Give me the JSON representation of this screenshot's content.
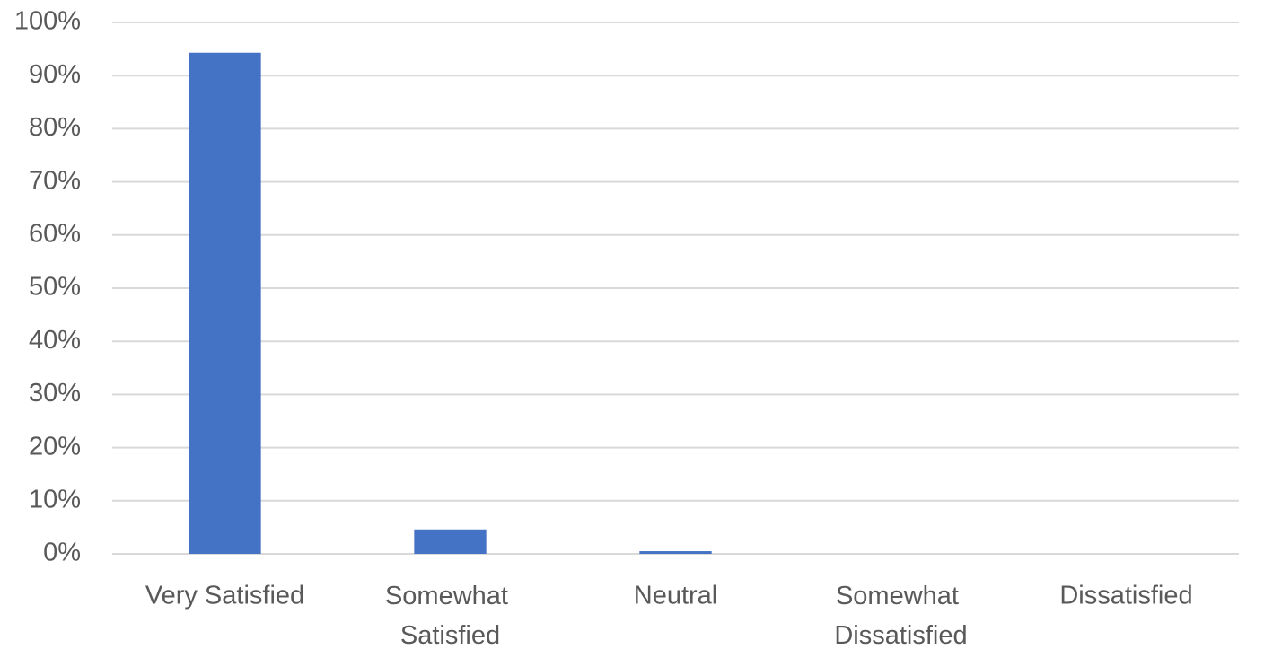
{
  "chart_data": {
    "type": "bar",
    "categories": [
      "Very Satisfied",
      "Somewhat Satisfied",
      "Neutral",
      "Somewhat Dissatisfied",
      "Dissatisfied"
    ],
    "values": [
      94.3,
      4.6,
      0.5,
      0,
      0
    ],
    "color": "#4472c4",
    "ylim": [
      0,
      100
    ],
    "yticks": [
      {
        "value": 0,
        "label": "0%"
      },
      {
        "value": 10,
        "label": "10%"
      },
      {
        "value": 20,
        "label": "20%"
      },
      {
        "value": 30,
        "label": "30%"
      },
      {
        "value": 40,
        "label": "40%"
      },
      {
        "value": 50,
        "label": "50%"
      },
      {
        "value": 60,
        "label": "60%"
      },
      {
        "value": 70,
        "label": "70%"
      },
      {
        "value": 80,
        "label": "80%"
      },
      {
        "value": 90,
        "label": "90%"
      },
      {
        "value": 100,
        "label": "100%"
      }
    ],
    "grid": true
  }
}
